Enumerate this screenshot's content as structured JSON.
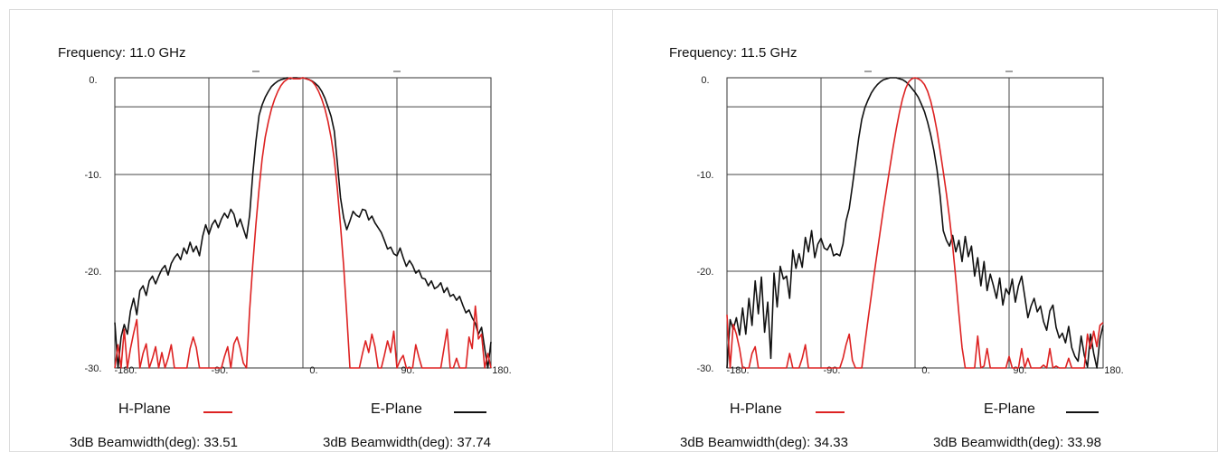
{
  "chart_data": [
    {
      "type": "line",
      "title": "Frequency: 11.0 GHz",
      "xlim": [
        -180,
        180
      ],
      "ylim": [
        -30,
        0
      ],
      "x_ticks": [
        "-180.",
        "-90.",
        "0.",
        "90.",
        "180."
      ],
      "y_ticks": [
        "0.",
        "-10.",
        "-20.",
        "-30."
      ],
      "grid": true,
      "legend": [
        {
          "label": "H-Plane",
          "color": "#dd2222"
        },
        {
          "label": "E-Plane",
          "color": "#111111"
        }
      ],
      "beamwidths": [
        "3dB Beamwidth(deg): 33.51",
        "3dB Beamwidth(deg): 37.74"
      ],
      "series": [
        {
          "name": "H-Plane",
          "color": "#dd2222",
          "x": [
            -180,
            -177,
            -174,
            -171,
            -168,
            -165,
            -162,
            -159,
            -156,
            -153,
            -150,
            -147,
            -144,
            -141,
            -138,
            -135,
            -132,
            -129,
            -126,
            -123,
            -120,
            -117,
            -114,
            -111,
            -108,
            -105,
            -102,
            -99,
            -96,
            -93,
            -90,
            -87,
            -84,
            -81,
            -78,
            -75,
            -72,
            -69,
            -66,
            -63,
            -60,
            -57,
            -54,
            -51,
            -48,
            -45,
            -42,
            -39,
            -36,
            -33,
            -30,
            -27,
            -24,
            -21,
            -18,
            -15,
            -12,
            -9,
            -6,
            -3,
            0,
            3,
            6,
            9,
            12,
            15,
            18,
            21,
            24,
            27,
            30,
            33,
            36,
            39,
            42,
            45,
            48,
            51,
            54,
            57,
            60,
            63,
            66,
            69,
            72,
            75,
            78,
            81,
            84,
            87,
            90,
            93,
            96,
            99,
            102,
            105,
            108,
            111,
            114,
            117,
            120,
            123,
            126,
            129,
            132,
            135,
            138,
            141,
            144,
            147,
            150,
            153,
            156,
            159,
            162,
            165,
            168,
            171,
            174,
            177,
            180
          ],
          "y": [
            -30,
            -27.6,
            -30,
            -26,
            -30,
            -28,
            -26.4,
            -25,
            -30,
            -28.5,
            -27.5,
            -30,
            -29,
            -27.8,
            -30,
            -28.4,
            -30,
            -29,
            -27.6,
            -30,
            -30,
            -30,
            -30,
            -30,
            -28,
            -26.8,
            -27.9,
            -30,
            -30,
            -30,
            -30,
            -30,
            -30,
            -30,
            -30,
            -28.8,
            -27.8,
            -30,
            -27.5,
            -26.8,
            -28,
            -29.5,
            -30,
            -24,
            -19.4,
            -15.2,
            -11.5,
            -8.4,
            -6.1,
            -4.5,
            -3.2,
            -2.2,
            -1.4,
            -0.8,
            -0.4,
            -0.15,
            0,
            -0.1,
            -0.1,
            -0.1,
            0,
            -0.1,
            -0.2,
            -0.4,
            -0.8,
            -1.4,
            -2.2,
            -3.2,
            -4.5,
            -6.2,
            -8.4,
            -11.5,
            -15.3,
            -19.5,
            -24.5,
            -30,
            -30,
            -30,
            -30,
            -28.5,
            -27.2,
            -28.4,
            -26.5,
            -27.8,
            -30,
            -30,
            -28.7,
            -27.2,
            -28.4,
            -26.2,
            -30,
            -29.2,
            -28.7,
            -30,
            -30,
            -30,
            -27.6,
            -28.9,
            -30,
            -30,
            -30,
            -30,
            -30,
            -30,
            -30,
            -28,
            -26,
            -30,
            -30,
            -29,
            -30,
            -30,
            -30,
            -26.8,
            -28,
            -23.6,
            -27,
            -26.5,
            -30,
            -28.5,
            -30
          ]
        },
        {
          "name": "E-Plane",
          "color": "#111111",
          "x": [
            -180,
            -177,
            -174,
            -171,
            -168,
            -165,
            -162,
            -159,
            -156,
            -153,
            -150,
            -147,
            -144,
            -141,
            -138,
            -135,
            -132,
            -129,
            -126,
            -123,
            -120,
            -117,
            -114,
            -111,
            -108,
            -105,
            -102,
            -99,
            -96,
            -93,
            -90,
            -87,
            -84,
            -81,
            -78,
            -75,
            -72,
            -69,
            -66,
            -63,
            -60,
            -57,
            -54,
            -51,
            -48,
            -45,
            -42,
            -39,
            -36,
            -33,
            -30,
            -27,
            -24,
            -21,
            -18,
            -15,
            -12,
            -9,
            -6,
            -3,
            0,
            3,
            6,
            9,
            12,
            15,
            18,
            21,
            24,
            27,
            30,
            33,
            36,
            39,
            42,
            45,
            48,
            51,
            54,
            57,
            60,
            63,
            66,
            69,
            72,
            75,
            78,
            81,
            84,
            87,
            90,
            93,
            96,
            99,
            102,
            105,
            108,
            111,
            114,
            117,
            120,
            123,
            126,
            129,
            132,
            135,
            138,
            141,
            144,
            147,
            150,
            153,
            156,
            159,
            162,
            165,
            168,
            171,
            174,
            177,
            180
          ],
          "y": [
            -25.3,
            -30,
            -26.8,
            -25.5,
            -26.5,
            -24.1,
            -22.8,
            -24.5,
            -22,
            -21.5,
            -22.5,
            -21,
            -20.5,
            -21.3,
            -20.5,
            -19.8,
            -19.4,
            -20.4,
            -19.2,
            -18.6,
            -18.2,
            -18.8,
            -17.6,
            -18.2,
            -17,
            -18,
            -17.4,
            -18.4,
            -16.4,
            -15.2,
            -16.2,
            -15.2,
            -14.7,
            -15.5,
            -14.6,
            -14,
            -14.5,
            -13.6,
            -14.1,
            -15.4,
            -14.6,
            -15.6,
            -16.6,
            -14.2,
            -10,
            -6.6,
            -3.9,
            -2.8,
            -2,
            -1.4,
            -0.9,
            -0.6,
            -0.35,
            -0.2,
            -0.1,
            0,
            -0.1,
            0,
            0,
            -0.05,
            0,
            -0.1,
            -0.2,
            -0.35,
            -0.6,
            -0.9,
            -1.4,
            -2.1,
            -3,
            -4,
            -5.5,
            -8.8,
            -12.4,
            -14.5,
            -15.7,
            -14.8,
            -13.8,
            -14.2,
            -14.4,
            -13.6,
            -13.7,
            -14.7,
            -14.3,
            -15,
            -15.5,
            -16,
            -16.8,
            -17.7,
            -17.5,
            -18.2,
            -18.4,
            -17.6,
            -18.6,
            -19.5,
            -18.9,
            -19.4,
            -20.2,
            -19.9,
            -20.7,
            -20.8,
            -21.5,
            -21,
            -21.8,
            -21.6,
            -21.2,
            -22.2,
            -21.7,
            -22.6,
            -22.4,
            -23,
            -22.6,
            -23.5,
            -24.3,
            -24,
            -24.8,
            -25.4,
            -26.5,
            -25.8,
            -28,
            -30,
            -27.3
          ]
        }
      ]
    },
    {
      "type": "line",
      "title": "Frequency: 11.5 GHz",
      "xlim": [
        -180,
        180
      ],
      "ylim": [
        -30,
        0
      ],
      "x_ticks": [
        "-180.",
        "-90.",
        "0.",
        "90.",
        "180."
      ],
      "y_ticks": [
        "0.",
        "-10.",
        "-20.",
        "-30."
      ],
      "grid": true,
      "legend": [
        {
          "label": "H-Plane",
          "color": "#dd2222"
        },
        {
          "label": "E-Plane",
          "color": "#111111"
        }
      ],
      "beamwidths": [
        "3dB Beamwidth(deg): 34.33",
        "3dB Beamwidth(deg): 33.98"
      ],
      "series": [
        {
          "name": "H-Plane",
          "color": "#dd2222",
          "x": [
            -180,
            -177,
            -174,
            -171,
            -168,
            -165,
            -162,
            -159,
            -156,
            -153,
            -150,
            -147,
            -144,
            -141,
            -138,
            -135,
            -132,
            -129,
            -126,
            -123,
            -120,
            -117,
            -114,
            -111,
            -108,
            -105,
            -102,
            -99,
            -96,
            -93,
            -90,
            -87,
            -84,
            -81,
            -78,
            -75,
            -72,
            -69,
            -66,
            -63,
            -60,
            -57,
            -54,
            -51,
            -48,
            -45,
            -42,
            -39,
            -36,
            -33,
            -30,
            -27,
            -24,
            -21,
            -18,
            -15,
            -12,
            -9,
            -6,
            -3,
            0,
            3,
            6,
            9,
            12,
            15,
            18,
            21,
            24,
            27,
            30,
            33,
            36,
            39,
            42,
            45,
            48,
            51,
            54,
            57,
            60,
            63,
            66,
            69,
            72,
            75,
            78,
            81,
            84,
            87,
            90,
            93,
            96,
            99,
            102,
            105,
            108,
            111,
            114,
            117,
            120,
            123,
            126,
            129,
            132,
            135,
            138,
            141,
            144,
            147,
            150,
            153,
            156,
            159,
            162,
            165,
            168,
            171,
            174,
            177,
            180
          ],
          "y": [
            -24.5,
            -30,
            -25.5,
            -26.5,
            -28,
            -30,
            -30,
            -30,
            -28.5,
            -27.8,
            -30,
            -30,
            -30,
            -30,
            -30,
            -30,
            -30,
            -30,
            -30,
            -30,
            -28.5,
            -30,
            -30,
            -30,
            -29,
            -27.6,
            -30,
            -30,
            -30,
            -30,
            -30,
            -30,
            -30,
            -30,
            -30,
            -30,
            -30,
            -29,
            -27.6,
            -26.5,
            -29.2,
            -30,
            -30,
            -30,
            -27.5,
            -25,
            -22.6,
            -20.2,
            -17.9,
            -15.6,
            -13.4,
            -11.3,
            -9.2,
            -7.2,
            -5.3,
            -3.6,
            -2.2,
            -1.1,
            -0.4,
            -0.1,
            0,
            -0.1,
            -0.3,
            -0.7,
            -1.4,
            -2.4,
            -3.8,
            -5.5,
            -7.5,
            -9.7,
            -12,
            -14.5,
            -17.4,
            -20.8,
            -24.4,
            -27.9,
            -30,
            -30,
            -30,
            -30,
            -26.7,
            -30,
            -29.8,
            -28,
            -30,
            -30,
            -30,
            -30,
            -30,
            -30,
            -28.8,
            -30,
            -30,
            -30,
            -28,
            -30,
            -29,
            -30,
            -30,
            -30,
            -30,
            -29.7,
            -30,
            -28,
            -30,
            -29.8,
            -30,
            -30,
            -30,
            -29,
            -30,
            -30,
            -30,
            -30,
            -30,
            -26.5,
            -28,
            -26.2,
            -27.8,
            -25.6,
            -25.3
          ]
        },
        {
          "name": "E-Plane",
          "color": "#111111",
          "x": [
            -180,
            -177,
            -174,
            -171,
            -168,
            -165,
            -162,
            -159,
            -156,
            -153,
            -150,
            -147,
            -144,
            -141,
            -138,
            -135,
            -132,
            -129,
            -126,
            -123,
            -120,
            -117,
            -114,
            -111,
            -108,
            -105,
            -102,
            -99,
            -96,
            -93,
            -90,
            -87,
            -84,
            -81,
            -78,
            -75,
            -72,
            -69,
            -66,
            -63,
            -60,
            -57,
            -54,
            -51,
            -48,
            -45,
            -42,
            -39,
            -36,
            -33,
            -30,
            -27,
            -24,
            -21,
            -18,
            -15,
            -12,
            -9,
            -6,
            -3,
            0,
            3,
            6,
            9,
            12,
            15,
            18,
            21,
            24,
            27,
            30,
            33,
            36,
            39,
            42,
            45,
            48,
            51,
            54,
            57,
            60,
            63,
            66,
            69,
            72,
            75,
            78,
            81,
            84,
            87,
            90,
            93,
            96,
            99,
            102,
            105,
            108,
            111,
            114,
            117,
            120,
            123,
            126,
            129,
            132,
            135,
            138,
            141,
            144,
            147,
            150,
            153,
            156,
            159,
            162,
            165,
            168,
            171,
            174,
            177,
            180
          ],
          "y": [
            -30,
            -25,
            -26,
            -24.8,
            -26.6,
            -23.8,
            -26.5,
            -22.8,
            -25.6,
            -21,
            -24.4,
            -20.6,
            -26.3,
            -23.2,
            -29,
            -20.2,
            -23.7,
            -19.5,
            -20.8,
            -20.5,
            -22.8,
            -17.8,
            -19.7,
            -18.2,
            -19.6,
            -16.5,
            -18,
            -15.8,
            -18.6,
            -17.2,
            -16.6,
            -17.6,
            -17.8,
            -17.2,
            -18.4,
            -18.2,
            -18.4,
            -17.2,
            -14.8,
            -13.5,
            -11.2,
            -8.8,
            -6.3,
            -4.3,
            -3.1,
            -2.3,
            -1.6,
            -1.1,
            -0.7,
            -0.4,
            -0.2,
            -0.1,
            0,
            0,
            0,
            -0.1,
            -0.2,
            -0.4,
            -0.7,
            -1.1,
            -1.5,
            -2,
            -2.7,
            -3.5,
            -4.6,
            -5.9,
            -7.5,
            -9.5,
            -12.2,
            -15.8,
            -16.8,
            -17.4,
            -16.3,
            -18,
            -16.8,
            -19,
            -16.4,
            -18.5,
            -17.4,
            -20.5,
            -18.6,
            -21.5,
            -19,
            -22,
            -20.3,
            -21.5,
            -22.8,
            -20.7,
            -23.5,
            -21.8,
            -22.4,
            -20.8,
            -23.2,
            -21.5,
            -20.5,
            -22.6,
            -24.8,
            -23.6,
            -22.8,
            -24.2,
            -23.6,
            -25.2,
            -26.1,
            -24.1,
            -23.5,
            -25.8,
            -26.9,
            -26.4,
            -27.4,
            -25.7,
            -27.9,
            -28.8,
            -29.3,
            -26.7,
            -28.7,
            -29.9,
            -26.5,
            -28.5,
            -30,
            -27,
            -25.6
          ]
        }
      ]
    }
  ]
}
